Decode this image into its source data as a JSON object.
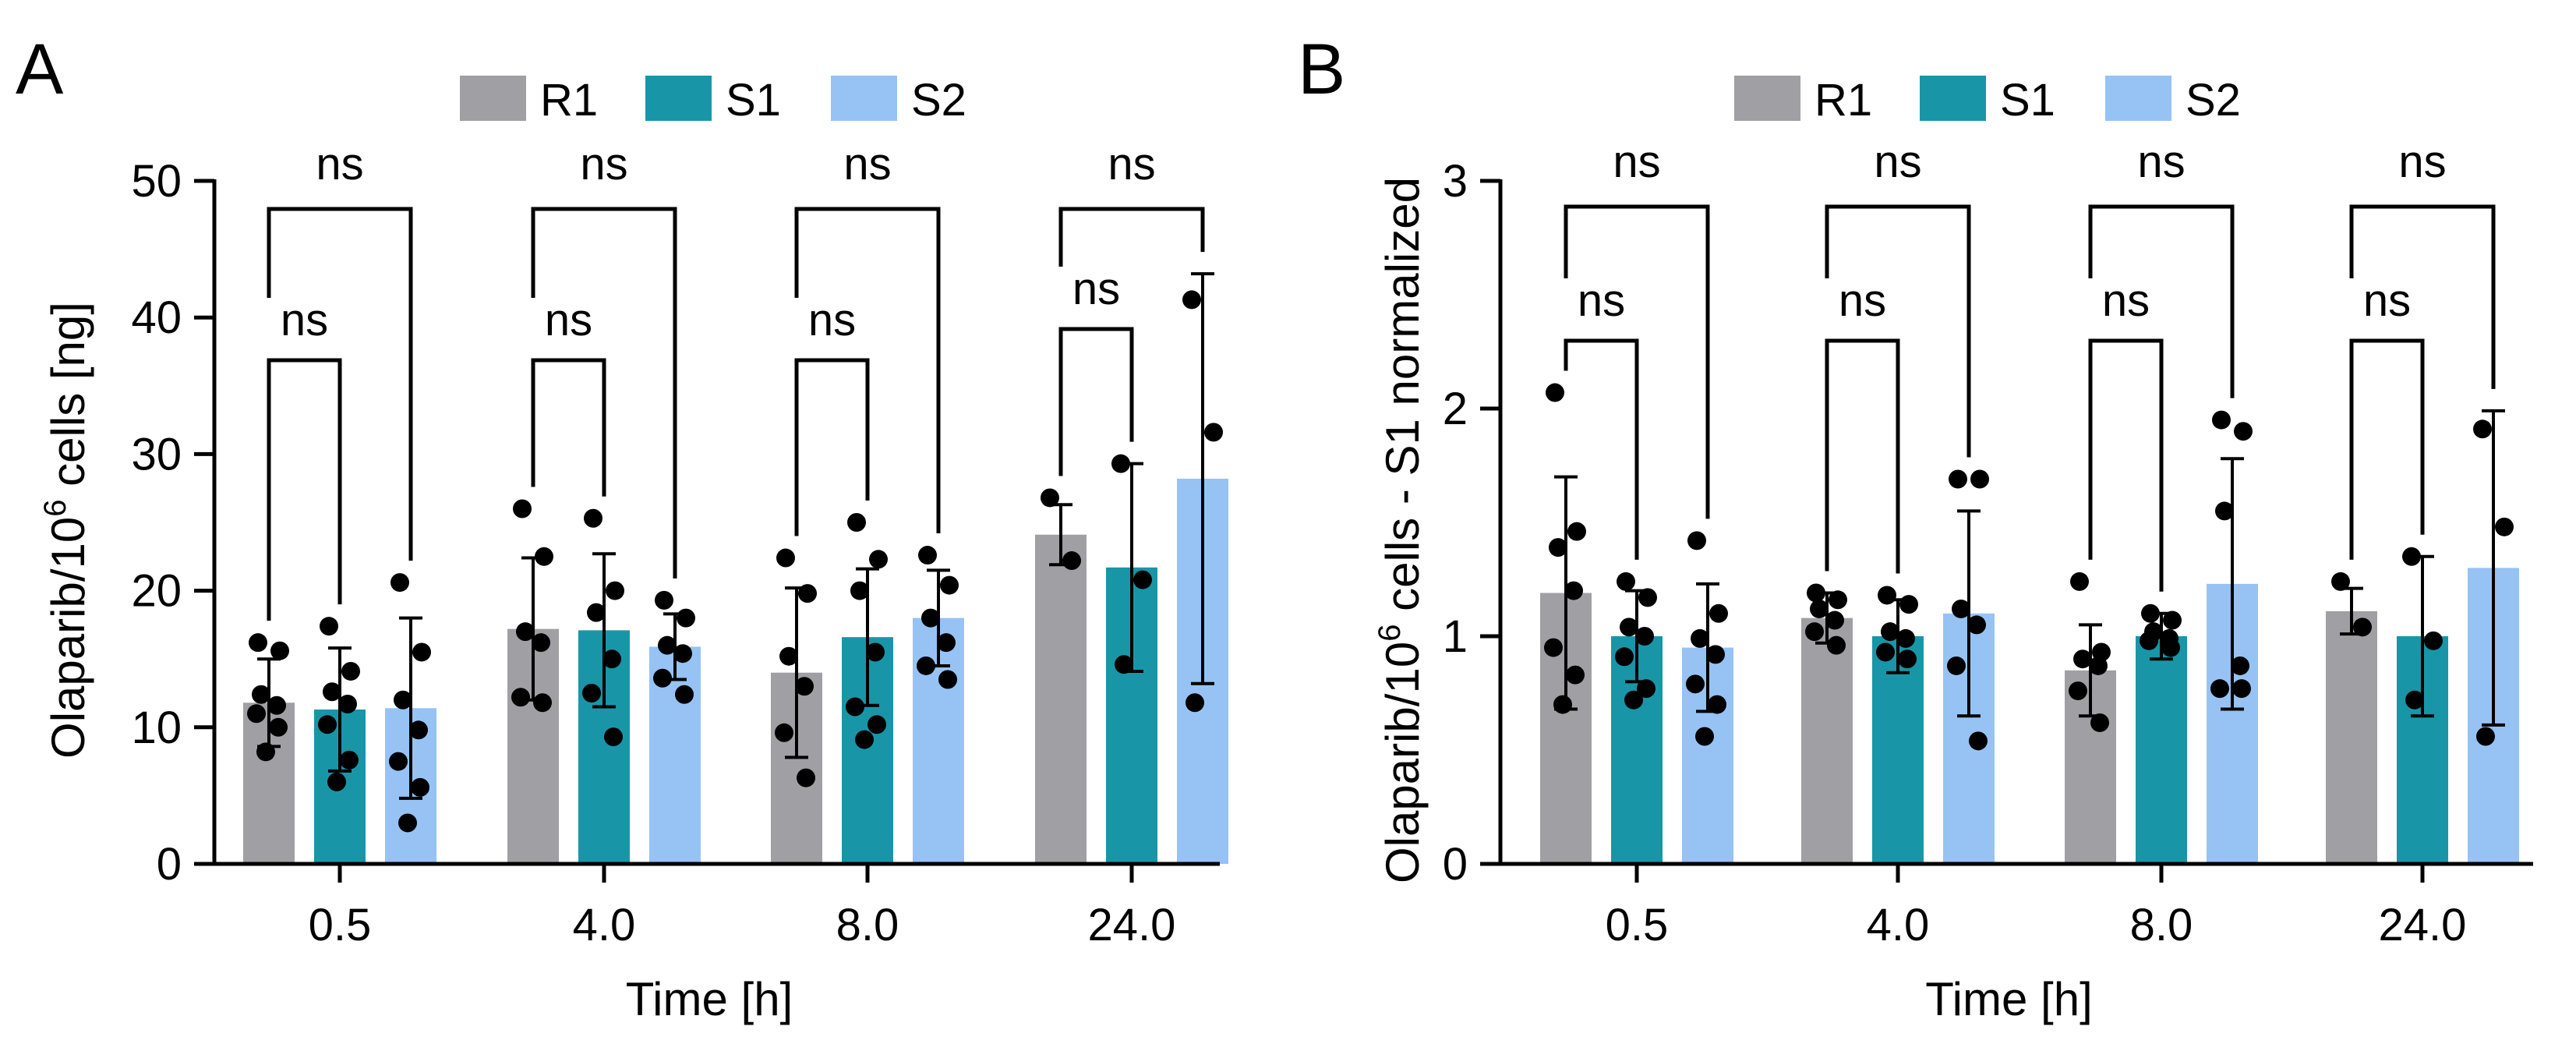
{
  "figure": {
    "legend_labels": [
      "R1",
      "S1",
      "S2"
    ],
    "significance_label": "ns"
  },
  "colors": {
    "R1": "#a09fa4",
    "S1": "#1896a8",
    "S2": "#96c3f4",
    "ink": "#000000"
  },
  "chart_data": [
    {
      "panel": "A",
      "type": "bar",
      "xlabel": "Time [h]",
      "ylabel_prefix": "Olaparib/10",
      "ylabel_sup": "6",
      "ylabel_suffix": " cells [ng]",
      "ylim": [
        0,
        50
      ],
      "yticks": [
        0,
        10,
        20,
        30,
        40,
        50
      ],
      "categories": [
        "0.5",
        "4.0",
        "8.0",
        "24.0"
      ],
      "series": [
        {
          "name": "R1",
          "values": [
            11.8,
            17.2,
            14.0,
            24.1
          ],
          "sd": [
            3.2,
            5.2,
            6.2,
            2.2
          ],
          "points": [
            [
              16.2,
              15.6,
              12.4,
              11.6,
              11.0,
              10.0,
              8.2
            ],
            [
              26.0,
              22.5,
              17.0,
              16.2,
              12.2,
              11.8
            ],
            [
              22.4,
              19.8,
              15.2,
              13.0,
              9.6,
              6.3
            ],
            [
              26.8,
              22.2
            ]
          ]
        },
        {
          "name": "S1",
          "values": [
            11.3,
            17.1,
            16.6,
            21.7
          ],
          "sd": [
            4.5,
            5.6,
            5.0,
            7.6
          ],
          "points": [
            [
              17.4,
              14.1,
              12.6,
              11.7,
              10.2,
              7.6,
              6.0
            ],
            [
              25.3,
              20.0,
              18.4,
              15.0,
              12.5,
              9.3
            ],
            [
              25.0,
              22.3,
              20.0,
              15.5,
              11.5,
              10.2,
              9.1
            ],
            [
              29.3,
              20.8,
              14.6
            ]
          ]
        },
        {
          "name": "S2",
          "values": [
            11.4,
            15.9,
            18.0,
            28.2
          ],
          "sd": [
            6.6,
            2.4,
            3.5,
            15.0
          ],
          "points": [
            [
              20.6,
              15.5,
              12.0,
              9.8,
              7.5,
              5.6,
              3.0
            ],
            [
              19.3,
              18.0,
              16.0,
              15.4,
              13.6,
              12.4
            ],
            [
              22.6,
              20.4,
              18.0,
              16.2,
              14.5,
              13.5
            ],
            [
              41.3,
              31.6,
              11.8
            ]
          ]
        }
      ],
      "comparisons": [
        {
          "pair": [
            "R1",
            "S1"
          ],
          "label": "ns"
        },
        {
          "pair": [
            "R1",
            "S2"
          ],
          "label": "ns"
        }
      ]
    },
    {
      "panel": "B",
      "type": "bar",
      "xlabel": "Time [h]",
      "ylabel_prefix": "Olaparib/10",
      "ylabel_sup": "6",
      "ylabel_suffix": " cells - S1 normalized",
      "ylim": [
        0,
        3
      ],
      "yticks": [
        0,
        1,
        2,
        3
      ],
      "categories": [
        "0.5",
        "4.0",
        "8.0",
        "24.0"
      ],
      "series": [
        {
          "name": "R1",
          "values": [
            1.19,
            1.08,
            0.85,
            1.11
          ],
          "sd": [
            0.51,
            0.11,
            0.2,
            0.1
          ],
          "points": [
            [
              2.07,
              1.46,
              1.39,
              1.2,
              0.95,
              0.83,
              0.7
            ],
            [
              1.19,
              1.16,
              1.12,
              1.07,
              1.02,
              0.96
            ],
            [
              1.24,
              0.93,
              0.9,
              0.87,
              0.76,
              0.62
            ],
            [
              1.24,
              1.04
            ]
          ]
        },
        {
          "name": "S1",
          "values": [
            1.0,
            1.0,
            1.0,
            1.0
          ],
          "sd": [
            0.2,
            0.16,
            0.1,
            0.35
          ],
          "points": [
            [
              1.24,
              1.17,
              1.04,
              1.0,
              0.91,
              0.77,
              0.72
            ],
            [
              1.18,
              1.14,
              1.02,
              0.99,
              0.93,
              0.9
            ],
            [
              1.1,
              1.07,
              1.02,
              0.99,
              0.98,
              0.95
            ],
            [
              1.35,
              0.98,
              0.72
            ]
          ]
        },
        {
          "name": "S2",
          "values": [
            0.95,
            1.1,
            1.23,
            1.3
          ],
          "sd": [
            0.28,
            0.45,
            0.55,
            0.69
          ],
          "points": [
            [
              1.42,
              1.1,
              0.99,
              0.92,
              0.79,
              0.7,
              0.56
            ],
            [
              1.69,
              1.69,
              1.12,
              1.05,
              0.87,
              0.54
            ],
            [
              1.95,
              1.9,
              1.55,
              0.87,
              0.77,
              0.77
            ],
            [
              1.91,
              1.48,
              0.56
            ]
          ]
        }
      ],
      "comparisons": [
        {
          "pair": [
            "R1",
            "S1"
          ],
          "label": "ns"
        },
        {
          "pair": [
            "R1",
            "S2"
          ],
          "label": "ns"
        }
      ]
    }
  ]
}
